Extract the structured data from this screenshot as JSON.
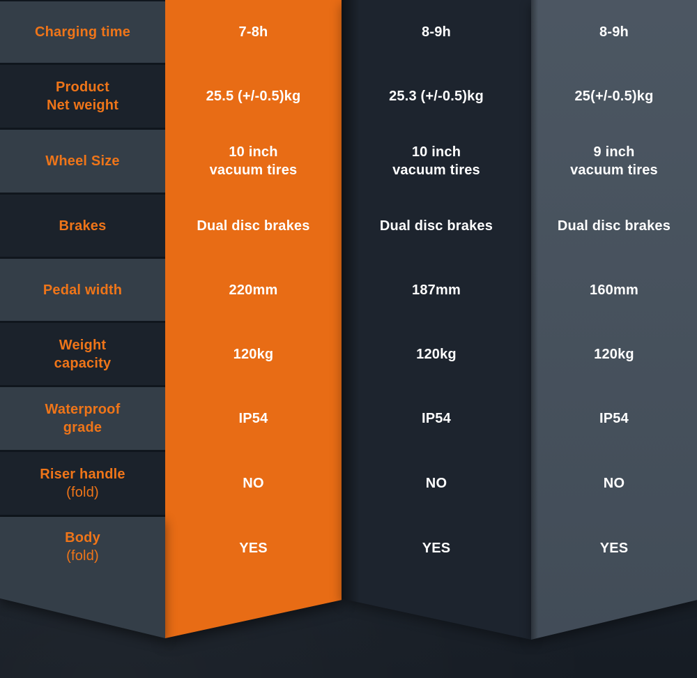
{
  "page": {
    "description": "Electric scooter specification comparison table"
  },
  "colors": {
    "accent_orange": "#e86c15",
    "label_text_orange": "#ef7519",
    "value_text_white": "#ffffff",
    "row_light": "#343e48",
    "row_dark": "#1b222b",
    "column2_panel": "#1d242e",
    "column3_panel": "#46515d",
    "background": "#1a212a"
  },
  "table": {
    "row_labels": [
      {
        "lines": [
          "Charging time"
        ]
      },
      {
        "lines": [
          "Product",
          "Net weight"
        ]
      },
      {
        "lines": [
          "Wheel Size"
        ]
      },
      {
        "lines": [
          "Brakes"
        ]
      },
      {
        "lines": [
          "Pedal width"
        ]
      },
      {
        "lines": [
          "Weight",
          "capacity"
        ]
      },
      {
        "lines": [
          "Waterproof",
          "grade"
        ]
      },
      {
        "lines": [
          "Riser handle",
          "(fold)"
        ]
      },
      {
        "lines": [
          "Body",
          "(fold)"
        ]
      }
    ],
    "columns": [
      {
        "id": "column-1-highlighted",
        "values": [
          [
            "7-8h"
          ],
          [
            "25.5 (+/-0.5)kg"
          ],
          [
            "10 inch",
            "vacuum tires"
          ],
          [
            "Dual disc brakes"
          ],
          [
            "220mm"
          ],
          [
            "120kg"
          ],
          [
            "IP54"
          ],
          [
            "NO"
          ],
          [
            "YES"
          ]
        ]
      },
      {
        "id": "column-2",
        "values": [
          [
            "8-9h"
          ],
          [
            "25.3 (+/-0.5)kg"
          ],
          [
            "10 inch",
            "vacuum tires"
          ],
          [
            "Dual disc brakes"
          ],
          [
            "187mm"
          ],
          [
            "120kg"
          ],
          [
            "IP54"
          ],
          [
            "NO"
          ],
          [
            "YES"
          ]
        ]
      },
      {
        "id": "column-3",
        "values": [
          [
            "8-9h"
          ],
          [
            "25(+/-0.5)kg"
          ],
          [
            "9 inch",
            "vacuum tires"
          ],
          [
            "Dual disc brakes"
          ],
          [
            "160mm"
          ],
          [
            "120kg"
          ],
          [
            "IP54"
          ],
          [
            "NO"
          ],
          [
            "YES"
          ]
        ]
      }
    ]
  },
  "chart_data": {
    "type": "table",
    "title": "",
    "row_labels": [
      "Charging time",
      "Product Net weight",
      "Wheel Size",
      "Brakes",
      "Pedal width",
      "Weight capacity",
      "Waterproof grade",
      "Riser handle (fold)",
      "Body (fold)"
    ],
    "series": [
      {
        "name": "column-1-highlighted",
        "values": [
          "7-8h",
          "25.5 (+/-0.5)kg",
          "10 inch vacuum tires",
          "Dual disc brakes",
          "220mm",
          "120kg",
          "IP54",
          "NO",
          "YES"
        ]
      },
      {
        "name": "column-2",
        "values": [
          "8-9h",
          "25.3 (+/-0.5)kg",
          "10 inch vacuum tires",
          "Dual disc brakes",
          "187mm",
          "120kg",
          "IP54",
          "NO",
          "YES"
        ]
      },
      {
        "name": "column-3",
        "values": [
          "8-9h",
          "25(+/-0.5)kg",
          "9 inch vacuum tires",
          "Dual disc brakes",
          "160mm",
          "120kg",
          "IP54",
          "NO",
          "YES"
        ]
      }
    ],
    "layout": {
      "highlighted_column_index": 0,
      "highlight_color": "#e86c15",
      "legend": "none",
      "grid": "row blocks with dark separators"
    }
  }
}
